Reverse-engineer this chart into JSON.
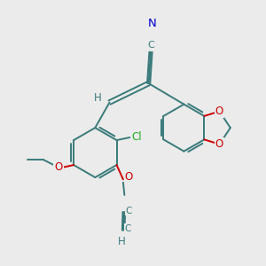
{
  "bg_color": "#ebebeb",
  "bond_color": "#3a7a7a",
  "bond_width": 1.4,
  "atom_colors": {
    "N": "#0000cc",
    "O": "#cc0000",
    "Cl": "#22aa22",
    "C": "#3a7a7a",
    "H": "#3a7a7a"
  },
  "font_size": 8.5,
  "figsize": [
    3.0,
    3.0
  ],
  "dpi": 100,
  "xlim": [
    0,
    10
  ],
  "ylim": [
    0,
    10
  ]
}
